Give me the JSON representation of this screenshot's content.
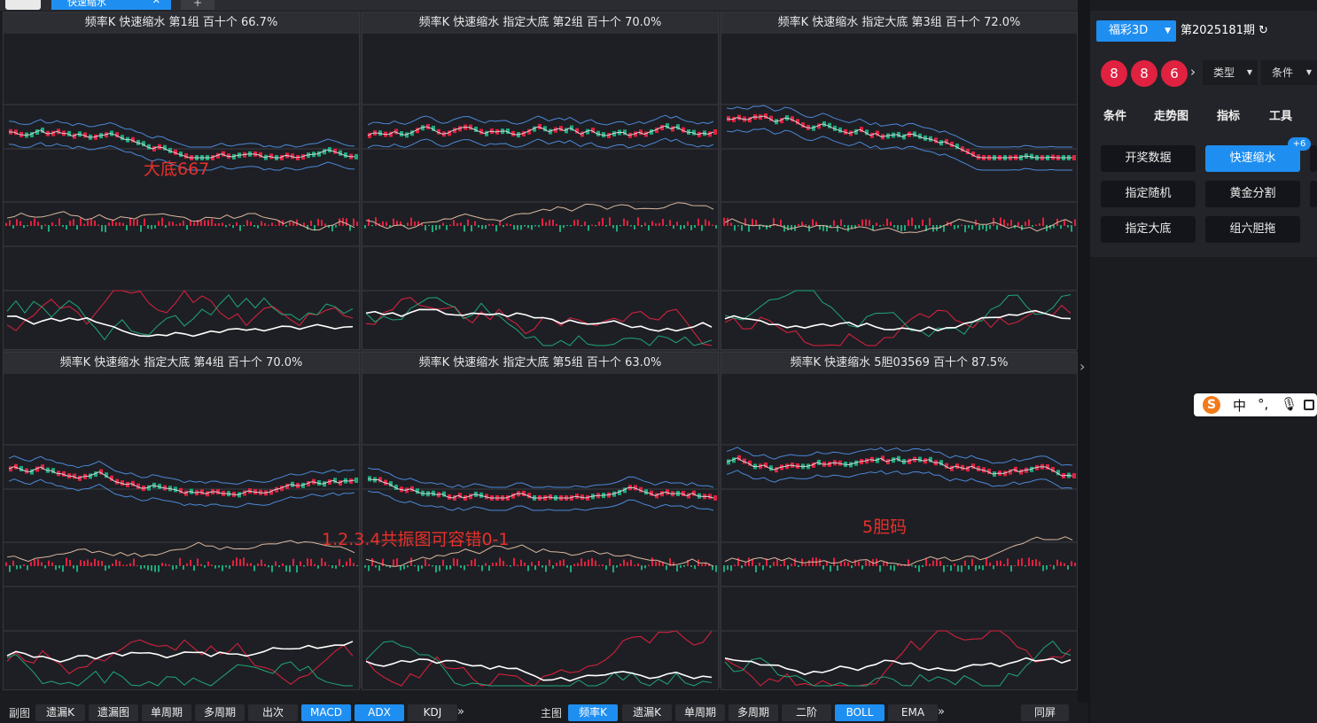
{
  "topbar": {
    "tab_label": "快速缩水",
    "tab_close": "✕",
    "plus": "+"
  },
  "panels": [
    {
      "title": "频率K  快速缩水  第1组  百十个  66.7%"
    },
    {
      "title": "频率K  快速缩水  指定大底 第2组  百十个  70.0%"
    },
    {
      "title": "频率K  快速缩水  指定大底 第3组  百十个  72.0%"
    },
    {
      "title": "频率K  快速缩水  指定大底 第4组  百十个  70.0%"
    },
    {
      "title": "频率K  快速缩水  指定大底 第5组  百十个  63.0%"
    },
    {
      "title": "频率K  快速缩水  5胆03569  百十个  87.5%"
    }
  ],
  "annotations": {
    "a1": "大底667",
    "a2": "1.2.3.4共振图可容错0-1",
    "a3": "5胆码"
  },
  "right": {
    "lottery": "福彩3D",
    "issue": "第2025181期",
    "balls": [
      "8",
      "8",
      "6"
    ],
    "dropdowns": [
      "类型",
      "条件"
    ],
    "tabs": [
      "条件",
      "走势图",
      "指标",
      "工具"
    ],
    "buttons": [
      "开奖数据",
      "快速缩水",
      "指定随机",
      "黄金分割",
      "指定大底",
      "组六胆拖"
    ],
    "badge": "+6"
  },
  "ime": {
    "lang": "中",
    "dot": "°,"
  },
  "bottom": {
    "left_label": "副图",
    "left_buttons": [
      "遗漏K",
      "遗漏图",
      "单周期",
      "多周期",
      "出次",
      "MACD",
      "ADX",
      "KDJ"
    ],
    "right_label": "主图",
    "right_buttons": [
      "频率K",
      "遗漏K",
      "单周期",
      "多周期",
      "二阶",
      "BOLL",
      "EMA"
    ],
    "sync": "同屏",
    "more": "»"
  },
  "colors": {
    "accent": "#1f8ef1",
    "up": "#e0213f",
    "down": "#1ea87a",
    "annotation": "#e8302a"
  }
}
